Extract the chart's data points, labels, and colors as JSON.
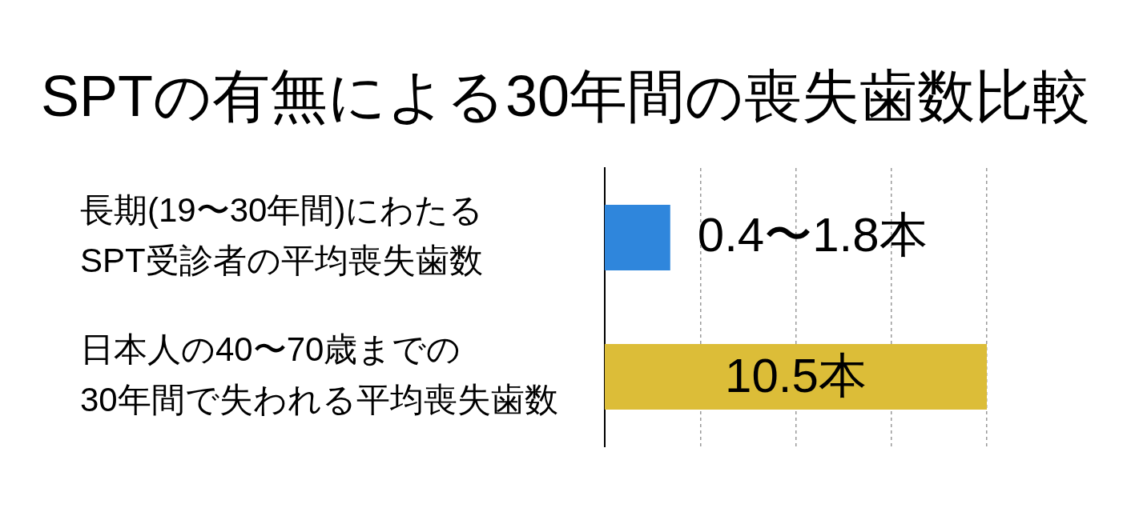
{
  "chart_data": {
    "type": "bar",
    "orientation": "horizontal",
    "title": "SPTの有無による30年間の喪失歯数比較",
    "categories": [
      "長期(19〜30年間)にわたる\nSPT受診者の平均喪失歯数",
      "日本人の40〜70歳までの\n30年間で失われる平均喪失歯数"
    ],
    "values": [
      1.8,
      10.5
    ],
    "colors": [
      "#2f86dc",
      "#dcbd38"
    ],
    "value_labels": [
      "0.4〜1.8本",
      "10.5本"
    ],
    "xlim": [
      0,
      10.5
    ],
    "xticks": [
      {
        "value": 2.625,
        "label": null
      },
      {
        "value": 5.25,
        "label": null
      },
      {
        "value": 7.875,
        "label": null
      },
      {
        "value": 10.5,
        "label": null
      }
    ],
    "grid": "x",
    "tick_labels": "y"
  }
}
